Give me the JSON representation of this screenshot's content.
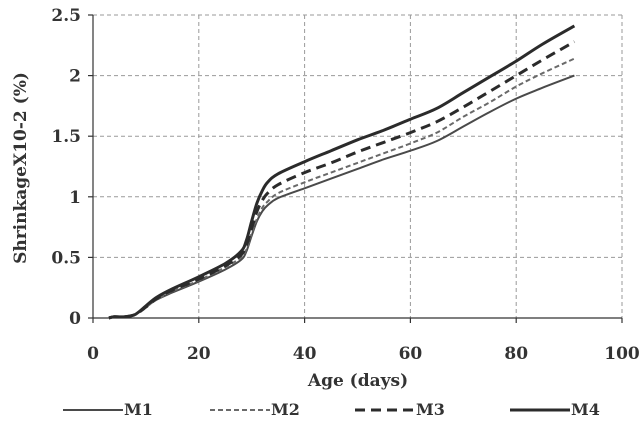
{
  "chart_data": {
    "type": "line",
    "xlabel": "Age (days)",
    "ylabel": "ShrinkageX10-2 (%)",
    "xlim": [
      0,
      100
    ],
    "ylim": [
      0,
      2.5
    ],
    "x_ticks": [
      "0",
      "20",
      "40",
      "60",
      "80",
      "100"
    ],
    "y_ticks": [
      "0",
      "0.5",
      "1",
      "1.5",
      "2",
      "2.5"
    ],
    "grid": true,
    "legend_position": "bottom",
    "series": [
      {
        "name": "M1",
        "style": "solid-thin",
        "color": "#4a4a4a",
        "points": [
          [
            3,
            0
          ],
          [
            4,
            0.01
          ],
          [
            6,
            0.01
          ],
          [
            8,
            0.03
          ],
          [
            10,
            0.09
          ],
          [
            12,
            0.15
          ],
          [
            15,
            0.21
          ],
          [
            20,
            0.3
          ],
          [
            25,
            0.4
          ],
          [
            28,
            0.48
          ],
          [
            29,
            0.55
          ],
          [
            30,
            0.68
          ],
          [
            31,
            0.8
          ],
          [
            32,
            0.88
          ],
          [
            33,
            0.93
          ],
          [
            35,
            0.99
          ],
          [
            40,
            1.07
          ],
          [
            45,
            1.15
          ],
          [
            50,
            1.23
          ],
          [
            55,
            1.31
          ],
          [
            60,
            1.38
          ],
          [
            65,
            1.46
          ],
          [
            70,
            1.58
          ],
          [
            75,
            1.7
          ],
          [
            80,
            1.81
          ],
          [
            85,
            1.9
          ],
          [
            91,
            2.0
          ]
        ]
      },
      {
        "name": "M2",
        "style": "dashed-thin",
        "color": "#6a6a6a",
        "points": [
          [
            3,
            0
          ],
          [
            4,
            0.01
          ],
          [
            6,
            0.01
          ],
          [
            8,
            0.03
          ],
          [
            10,
            0.09
          ],
          [
            12,
            0.15
          ],
          [
            15,
            0.22
          ],
          [
            20,
            0.31
          ],
          [
            25,
            0.42
          ],
          [
            28,
            0.5
          ],
          [
            29,
            0.57
          ],
          [
            30,
            0.7
          ],
          [
            31,
            0.82
          ],
          [
            32,
            0.91
          ],
          [
            33,
            0.96
          ],
          [
            35,
            1.03
          ],
          [
            40,
            1.12
          ],
          [
            45,
            1.2
          ],
          [
            50,
            1.28
          ],
          [
            55,
            1.36
          ],
          [
            60,
            1.44
          ],
          [
            65,
            1.53
          ],
          [
            70,
            1.66
          ],
          [
            75,
            1.78
          ],
          [
            80,
            1.91
          ],
          [
            85,
            2.02
          ],
          [
            91,
            2.14
          ]
        ]
      },
      {
        "name": "M3",
        "style": "dashed-thick",
        "color": "#2b2b2b",
        "points": [
          [
            3,
            0
          ],
          [
            4,
            0.01
          ],
          [
            6,
            0.01
          ],
          [
            8,
            0.03
          ],
          [
            10,
            0.09
          ],
          [
            12,
            0.16
          ],
          [
            15,
            0.23
          ],
          [
            20,
            0.32
          ],
          [
            25,
            0.43
          ],
          [
            28,
            0.52
          ],
          [
            29,
            0.6
          ],
          [
            30,
            0.74
          ],
          [
            31,
            0.88
          ],
          [
            32,
            0.97
          ],
          [
            33,
            1.03
          ],
          [
            35,
            1.1
          ],
          [
            40,
            1.2
          ],
          [
            45,
            1.28
          ],
          [
            50,
            1.37
          ],
          [
            55,
            1.45
          ],
          [
            60,
            1.53
          ],
          [
            65,
            1.62
          ],
          [
            70,
            1.74
          ],
          [
            75,
            1.87
          ],
          [
            80,
            2.0
          ],
          [
            85,
            2.13
          ],
          [
            91,
            2.28
          ]
        ]
      },
      {
        "name": "M4",
        "style": "solid-thick",
        "color": "#2b2b2b",
        "points": [
          [
            3,
            0
          ],
          [
            4,
            0.01
          ],
          [
            6,
            0.01
          ],
          [
            8,
            0.03
          ],
          [
            10,
            0.1
          ],
          [
            12,
            0.17
          ],
          [
            15,
            0.24
          ],
          [
            20,
            0.34
          ],
          [
            25,
            0.45
          ],
          [
            28,
            0.55
          ],
          [
            29,
            0.64
          ],
          [
            30,
            0.8
          ],
          [
            31,
            0.95
          ],
          [
            32,
            1.05
          ],
          [
            33,
            1.12
          ],
          [
            35,
            1.19
          ],
          [
            40,
            1.29
          ],
          [
            45,
            1.38
          ],
          [
            50,
            1.47
          ],
          [
            55,
            1.55
          ],
          [
            60,
            1.64
          ],
          [
            65,
            1.73
          ],
          [
            70,
            1.86
          ],
          [
            75,
            1.99
          ],
          [
            80,
            2.12
          ],
          [
            85,
            2.26
          ],
          [
            91,
            2.41
          ]
        ]
      }
    ]
  }
}
